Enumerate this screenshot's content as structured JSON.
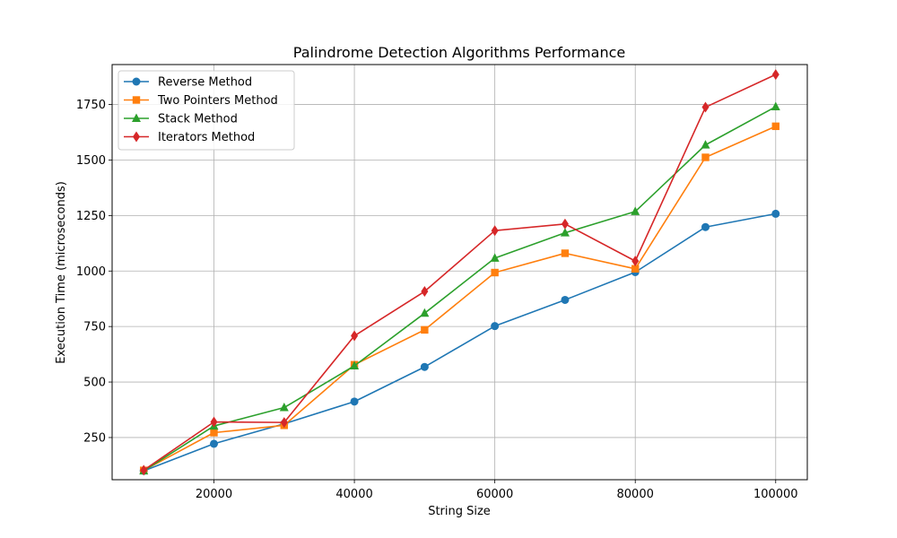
{
  "chart_data": {
    "type": "line",
    "title": "Palindrome Detection Algorithms Performance",
    "xlabel": "String Size",
    "ylabel": "Execution Time (microseconds)",
    "x": [
      10000,
      20000,
      30000,
      40000,
      50000,
      60000,
      70000,
      80000,
      90000,
      100000
    ],
    "xlim": [
      5500,
      104500
    ],
    "ylim": [
      60,
      1930
    ],
    "xticks": [
      20000,
      40000,
      60000,
      80000,
      100000
    ],
    "yticks": [
      250,
      500,
      750,
      1000,
      1250,
      1500,
      1750
    ],
    "grid": true,
    "legend_position": "top-left",
    "series": [
      {
        "name": "Reverse Method",
        "color": "#1f77b4",
        "marker": "circle",
        "values": [
          100,
          222,
          312,
          412,
          568,
          752,
          870,
          995,
          1198,
          1258
        ]
      },
      {
        "name": "Two Pointers Method",
        "color": "#ff7f0e",
        "marker": "square",
        "values": [
          102,
          272,
          305,
          578,
          735,
          993,
          1080,
          1010,
          1512,
          1652
        ]
      },
      {
        "name": "Stack Method",
        "color": "#2ca02c",
        "marker": "triangle",
        "values": [
          100,
          302,
          385,
          573,
          810,
          1058,
          1172,
          1268,
          1568,
          1740
        ]
      },
      {
        "name": "Iterators Method",
        "color": "#d62728",
        "marker": "diamond",
        "values": [
          103,
          320,
          318,
          708,
          908,
          1182,
          1212,
          1045,
          1738,
          1885
        ]
      }
    ]
  }
}
